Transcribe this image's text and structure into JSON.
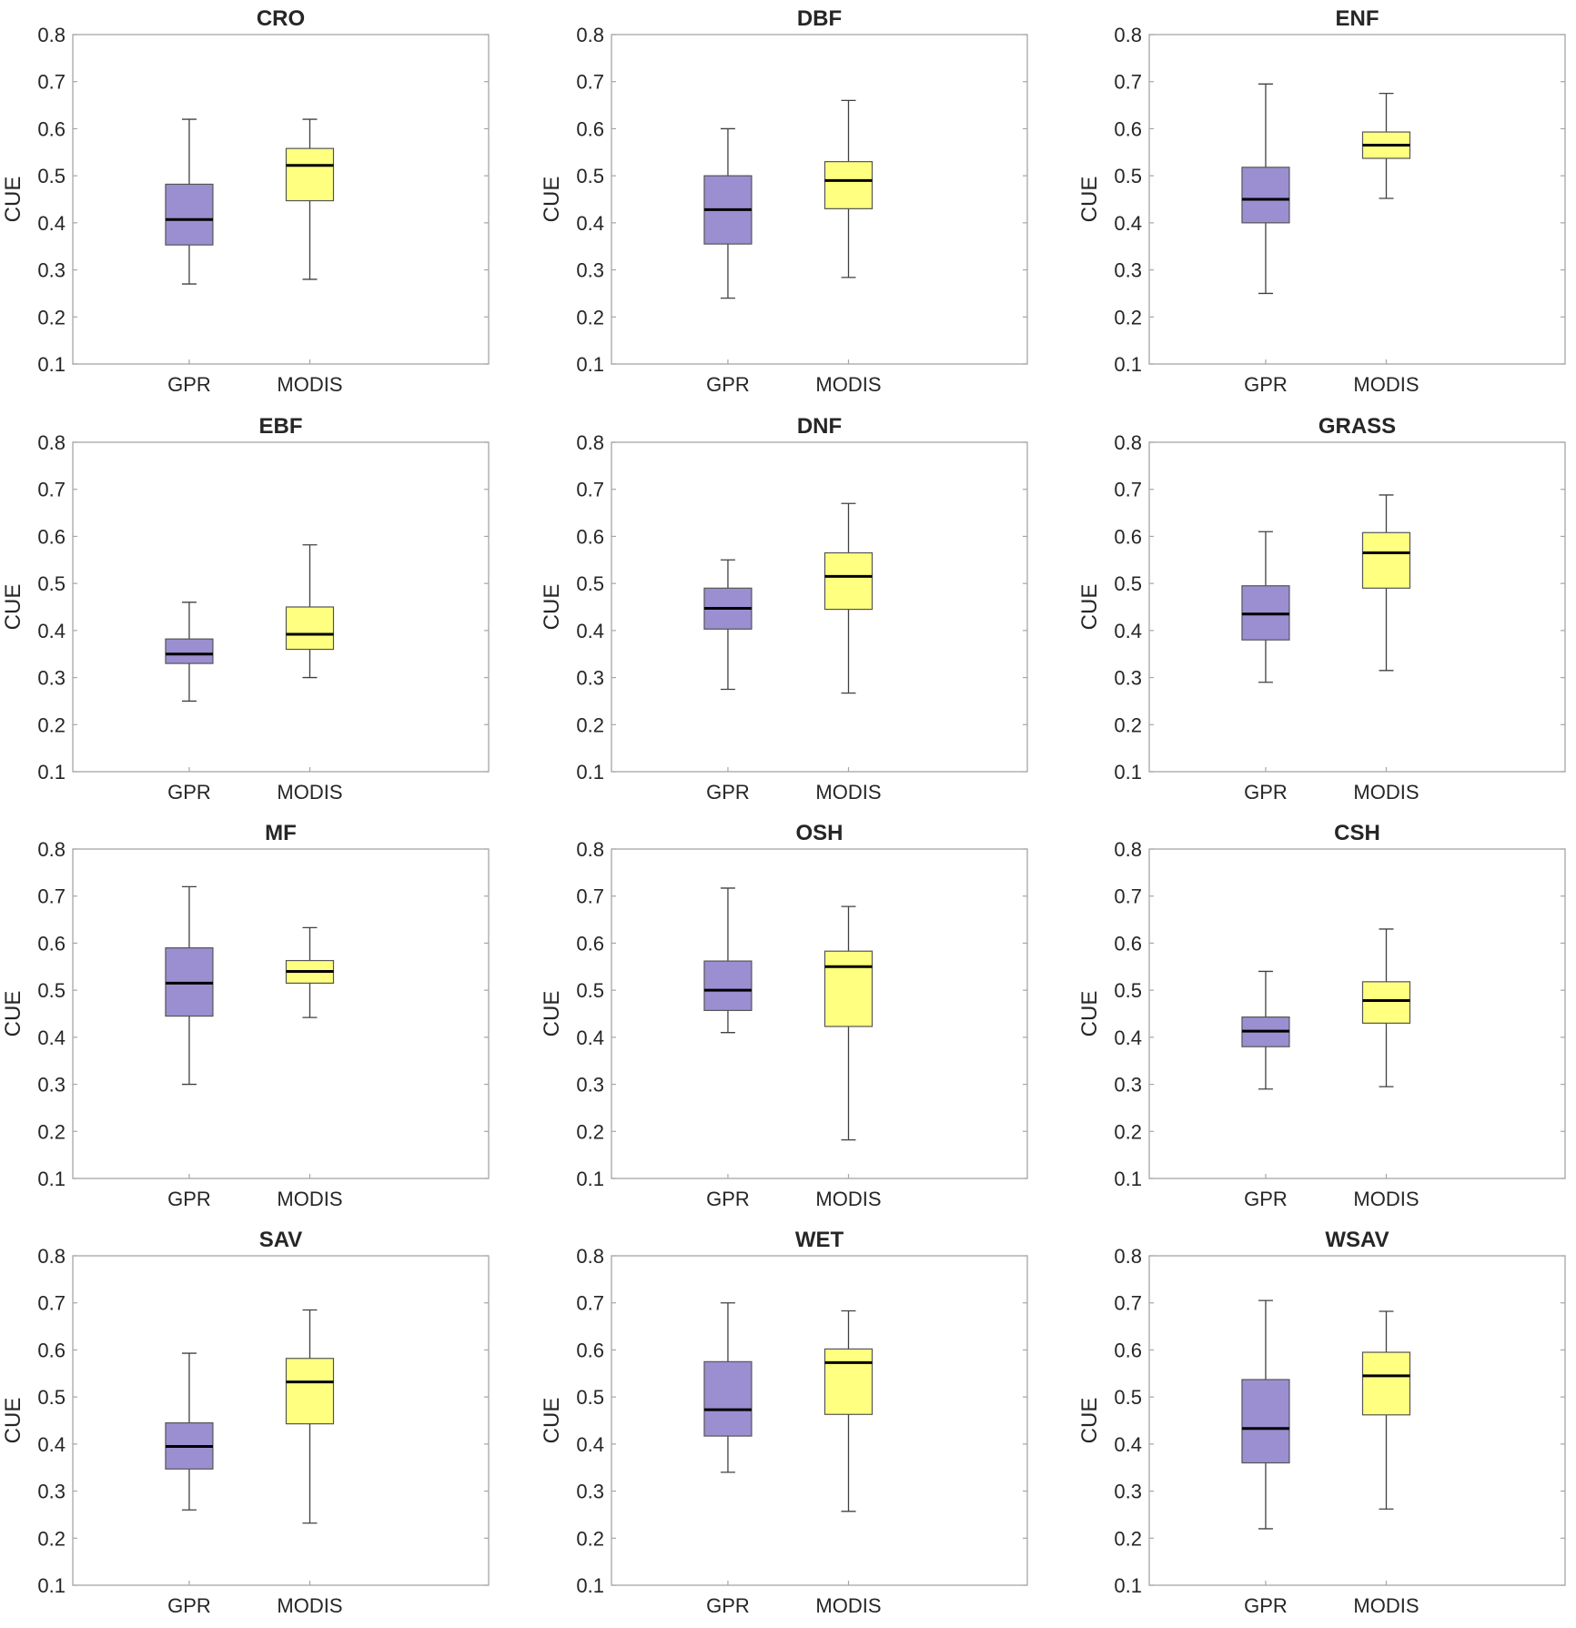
{
  "chart_data": {
    "type": "boxplot",
    "layout": "4x3 grid of panels",
    "ylabel": "CUE",
    "categories": [
      "GPR",
      "MODIS"
    ],
    "ylim": [
      0.1,
      0.8
    ],
    "yticks": [
      0.1,
      0.2,
      0.3,
      0.4,
      0.5,
      0.6,
      0.7,
      0.8
    ],
    "ytick_labels": [
      "0.1",
      "0.2",
      "0.3",
      "0.4",
      "0.5",
      "0.6",
      "0.7",
      "0.8"
    ],
    "colors": {
      "GPR": "#9b8fd1",
      "MODIS": "#ffff80",
      "median": "#000000",
      "whisker": "#404040",
      "frame": "#a6a6a6"
    },
    "panels": [
      {
        "title": "CRO",
        "boxes": [
          {
            "name": "GPR",
            "min": 0.27,
            "q1": 0.353,
            "median": 0.407,
            "q3": 0.482,
            "max": 0.62
          },
          {
            "name": "MODIS",
            "min": 0.28,
            "q1": 0.447,
            "median": 0.522,
            "q3": 0.558,
            "max": 0.62
          }
        ]
      },
      {
        "title": "DBF",
        "boxes": [
          {
            "name": "GPR",
            "min": 0.24,
            "q1": 0.355,
            "median": 0.428,
            "q3": 0.5,
            "max": 0.6
          },
          {
            "name": "MODIS",
            "min": 0.284,
            "q1": 0.43,
            "median": 0.49,
            "q3": 0.53,
            "max": 0.66
          }
        ]
      },
      {
        "title": "ENF",
        "boxes": [
          {
            "name": "GPR",
            "min": 0.25,
            "q1": 0.4,
            "median": 0.45,
            "q3": 0.518,
            "max": 0.695
          },
          {
            "name": "MODIS",
            "min": 0.452,
            "q1": 0.537,
            "median": 0.565,
            "q3": 0.593,
            "max": 0.675
          }
        ]
      },
      {
        "title": "EBF",
        "boxes": [
          {
            "name": "GPR",
            "min": 0.25,
            "q1": 0.33,
            "median": 0.35,
            "q3": 0.382,
            "max": 0.46
          },
          {
            "name": "MODIS",
            "min": 0.3,
            "q1": 0.36,
            "median": 0.392,
            "q3": 0.45,
            "max": 0.582
          }
        ]
      },
      {
        "title": "DNF",
        "boxes": [
          {
            "name": "GPR",
            "min": 0.275,
            "q1": 0.403,
            "median": 0.447,
            "q3": 0.49,
            "max": 0.55
          },
          {
            "name": "MODIS",
            "min": 0.267,
            "q1": 0.445,
            "median": 0.515,
            "q3": 0.565,
            "max": 0.67
          }
        ]
      },
      {
        "title": "GRASS",
        "boxes": [
          {
            "name": "GPR",
            "min": 0.29,
            "q1": 0.38,
            "median": 0.435,
            "q3": 0.495,
            "max": 0.61
          },
          {
            "name": "MODIS",
            "min": 0.315,
            "q1": 0.49,
            "median": 0.565,
            "q3": 0.608,
            "max": 0.688
          }
        ]
      },
      {
        "title": "MF",
        "boxes": [
          {
            "name": "GPR",
            "min": 0.3,
            "q1": 0.445,
            "median": 0.515,
            "q3": 0.59,
            "max": 0.72
          },
          {
            "name": "MODIS",
            "min": 0.442,
            "q1": 0.515,
            "median": 0.54,
            "q3": 0.563,
            "max": 0.633
          }
        ]
      },
      {
        "title": "OSH",
        "boxes": [
          {
            "name": "GPR",
            "min": 0.41,
            "q1": 0.457,
            "median": 0.5,
            "q3": 0.562,
            "max": 0.717
          },
          {
            "name": "MODIS",
            "min": 0.182,
            "q1": 0.423,
            "median": 0.55,
            "q3": 0.583,
            "max": 0.678
          }
        ]
      },
      {
        "title": "CSH",
        "boxes": [
          {
            "name": "GPR",
            "min": 0.29,
            "q1": 0.38,
            "median": 0.413,
            "q3": 0.443,
            "max": 0.54
          },
          {
            "name": "MODIS",
            "min": 0.295,
            "q1": 0.43,
            "median": 0.478,
            "q3": 0.518,
            "max": 0.63
          }
        ]
      },
      {
        "title": "SAV",
        "boxes": [
          {
            "name": "GPR",
            "min": 0.26,
            "q1": 0.347,
            "median": 0.395,
            "q3": 0.445,
            "max": 0.593
          },
          {
            "name": "MODIS",
            "min": 0.232,
            "q1": 0.443,
            "median": 0.532,
            "q3": 0.582,
            "max": 0.685
          }
        ]
      },
      {
        "title": "WET",
        "boxes": [
          {
            "name": "GPR",
            "min": 0.34,
            "q1": 0.417,
            "median": 0.473,
            "q3": 0.575,
            "max": 0.7
          },
          {
            "name": "MODIS",
            "min": 0.257,
            "q1": 0.463,
            "median": 0.573,
            "q3": 0.602,
            "max": 0.683
          }
        ]
      },
      {
        "title": "WSAV",
        "boxes": [
          {
            "name": "GPR",
            "min": 0.22,
            "q1": 0.36,
            "median": 0.433,
            "q3": 0.537,
            "max": 0.705
          },
          {
            "name": "MODIS",
            "min": 0.262,
            "q1": 0.462,
            "median": 0.545,
            "q3": 0.595,
            "max": 0.682
          }
        ]
      }
    ]
  }
}
